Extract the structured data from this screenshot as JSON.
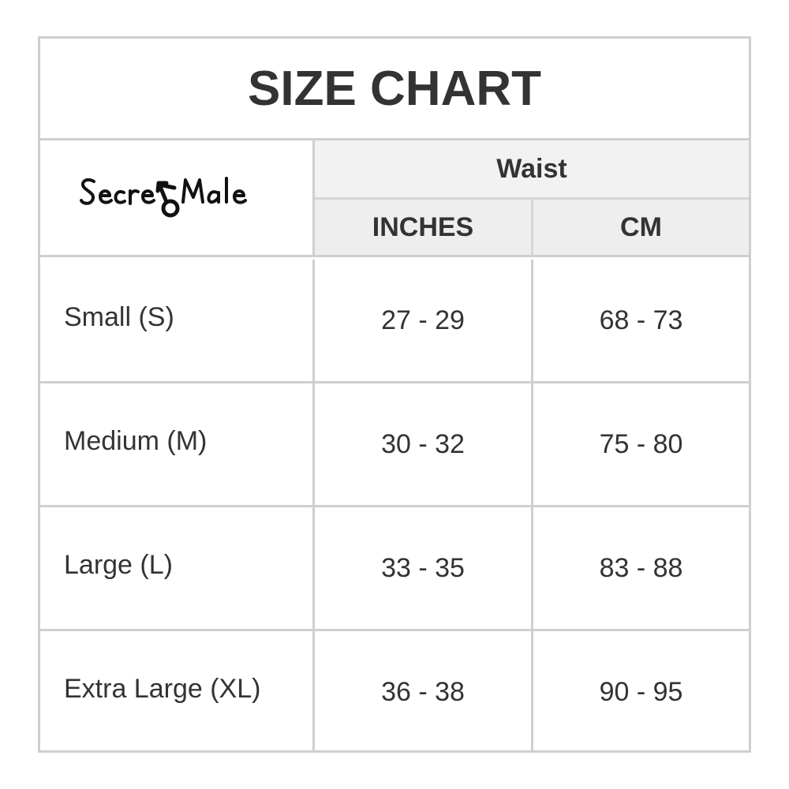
{
  "title": "SIZE CHART",
  "logo": {
    "text": "SecretMale",
    "icon": "male-symbol-icon"
  },
  "header": {
    "group": "Waist",
    "columns": [
      "INCHES",
      "CM"
    ]
  },
  "rows": [
    {
      "size": "Small (S)",
      "inches": "27 - 29",
      "cm": "68 - 73"
    },
    {
      "size": "Medium (M)",
      "inches": "30 - 32",
      "cm": "75 - 80"
    },
    {
      "size": "Large (L)",
      "inches": "33 - 35",
      "cm": "83 - 88"
    },
    {
      "size": "Extra Large (XL)",
      "inches": "36 - 38",
      "cm": "90 - 95"
    }
  ],
  "colors": {
    "text": "#333333",
    "border": "#cfcfcf",
    "header_bg": "#f2f2f2"
  }
}
